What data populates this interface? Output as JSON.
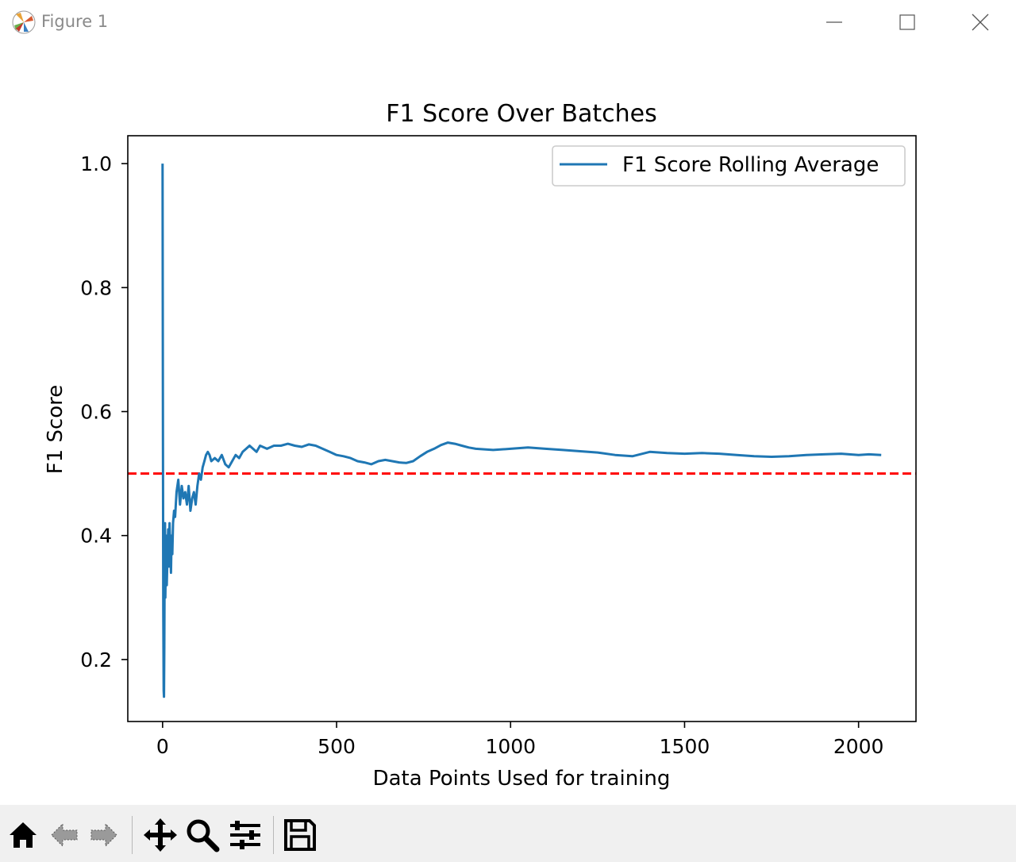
{
  "window": {
    "title": "Figure 1",
    "icon": "matplotlib-logo-icon"
  },
  "toolbar": {
    "buttons": [
      {
        "name": "home",
        "icon": "home-icon"
      },
      {
        "name": "back",
        "icon": "back-arrow-icon"
      },
      {
        "name": "forward",
        "icon": "forward-arrow-icon"
      },
      {
        "name": "pan",
        "icon": "pan-move-icon"
      },
      {
        "name": "zoom",
        "icon": "zoom-magnifier-icon"
      },
      {
        "name": "configure-subplots",
        "icon": "sliders-icon"
      },
      {
        "name": "save",
        "icon": "save-floppy-icon"
      }
    ]
  },
  "chart_data": {
    "type": "line",
    "title": "F1 Score Over Batches",
    "xlabel": "Data Points Used for training",
    "ylabel": "F1 Score",
    "xlim": [
      -100,
      2165
    ],
    "ylim": [
      0.1,
      1.045
    ],
    "xticks": [
      0,
      500,
      1000,
      1500,
      2000
    ],
    "yticks": [
      0.2,
      0.4,
      0.6,
      0.8,
      1.0
    ],
    "xtick_labels": [
      "0",
      "500",
      "1000",
      "1500",
      "2000"
    ],
    "ytick_labels": [
      "0.2",
      "0.4",
      "0.6",
      "0.8",
      "1.0"
    ],
    "grid": false,
    "legend_position": "upper right",
    "series": [
      {
        "name": "F1 Score Rolling Average",
        "color": "#1f77b4",
        "style": "solid",
        "x": [
          0,
          1,
          2,
          3,
          4,
          5,
          6,
          7,
          8,
          9,
          10,
          12,
          14,
          16,
          18,
          20,
          22,
          24,
          26,
          28,
          30,
          33,
          36,
          40,
          45,
          50,
          55,
          60,
          65,
          70,
          75,
          80,
          85,
          90,
          95,
          100,
          105,
          110,
          115,
          120,
          125,
          130,
          135,
          140,
          150,
          160,
          170,
          180,
          190,
          200,
          210,
          220,
          230,
          240,
          250,
          260,
          270,
          280,
          300,
          320,
          340,
          360,
          380,
          400,
          420,
          440,
          460,
          480,
          500,
          520,
          540,
          560,
          580,
          600,
          620,
          640,
          660,
          680,
          700,
          720,
          740,
          760,
          780,
          800,
          820,
          840,
          860,
          880,
          900,
          950,
          1000,
          1050,
          1100,
          1150,
          1200,
          1250,
          1300,
          1350,
          1400,
          1450,
          1500,
          1550,
          1600,
          1650,
          1700,
          1750,
          1800,
          1850,
          1900,
          1950,
          2000,
          2030,
          2065
        ],
        "y": [
          1.0,
          0.55,
          0.28,
          0.15,
          0.14,
          0.22,
          0.38,
          0.42,
          0.3,
          0.35,
          0.4,
          0.32,
          0.37,
          0.41,
          0.35,
          0.42,
          0.38,
          0.34,
          0.4,
          0.37,
          0.42,
          0.44,
          0.43,
          0.47,
          0.49,
          0.45,
          0.48,
          0.46,
          0.47,
          0.45,
          0.48,
          0.44,
          0.46,
          0.47,
          0.45,
          0.48,
          0.5,
          0.49,
          0.51,
          0.52,
          0.53,
          0.535,
          0.53,
          0.52,
          0.525,
          0.52,
          0.53,
          0.515,
          0.51,
          0.52,
          0.53,
          0.525,
          0.535,
          0.54,
          0.545,
          0.54,
          0.535,
          0.545,
          0.54,
          0.545,
          0.545,
          0.548,
          0.545,
          0.543,
          0.547,
          0.545,
          0.54,
          0.535,
          0.53,
          0.528,
          0.525,
          0.52,
          0.518,
          0.515,
          0.52,
          0.522,
          0.52,
          0.518,
          0.517,
          0.52,
          0.528,
          0.535,
          0.54,
          0.546,
          0.55,
          0.548,
          0.545,
          0.542,
          0.54,
          0.538,
          0.54,
          0.542,
          0.54,
          0.538,
          0.536,
          0.534,
          0.53,
          0.528,
          0.535,
          0.533,
          0.532,
          0.533,
          0.532,
          0.53,
          0.528,
          0.527,
          0.528,
          0.53,
          0.531,
          0.532,
          0.53,
          0.531,
          0.53
        ]
      }
    ],
    "reference_line": {
      "y": 0.5,
      "color": "#ff0000",
      "style": "dashed"
    }
  }
}
